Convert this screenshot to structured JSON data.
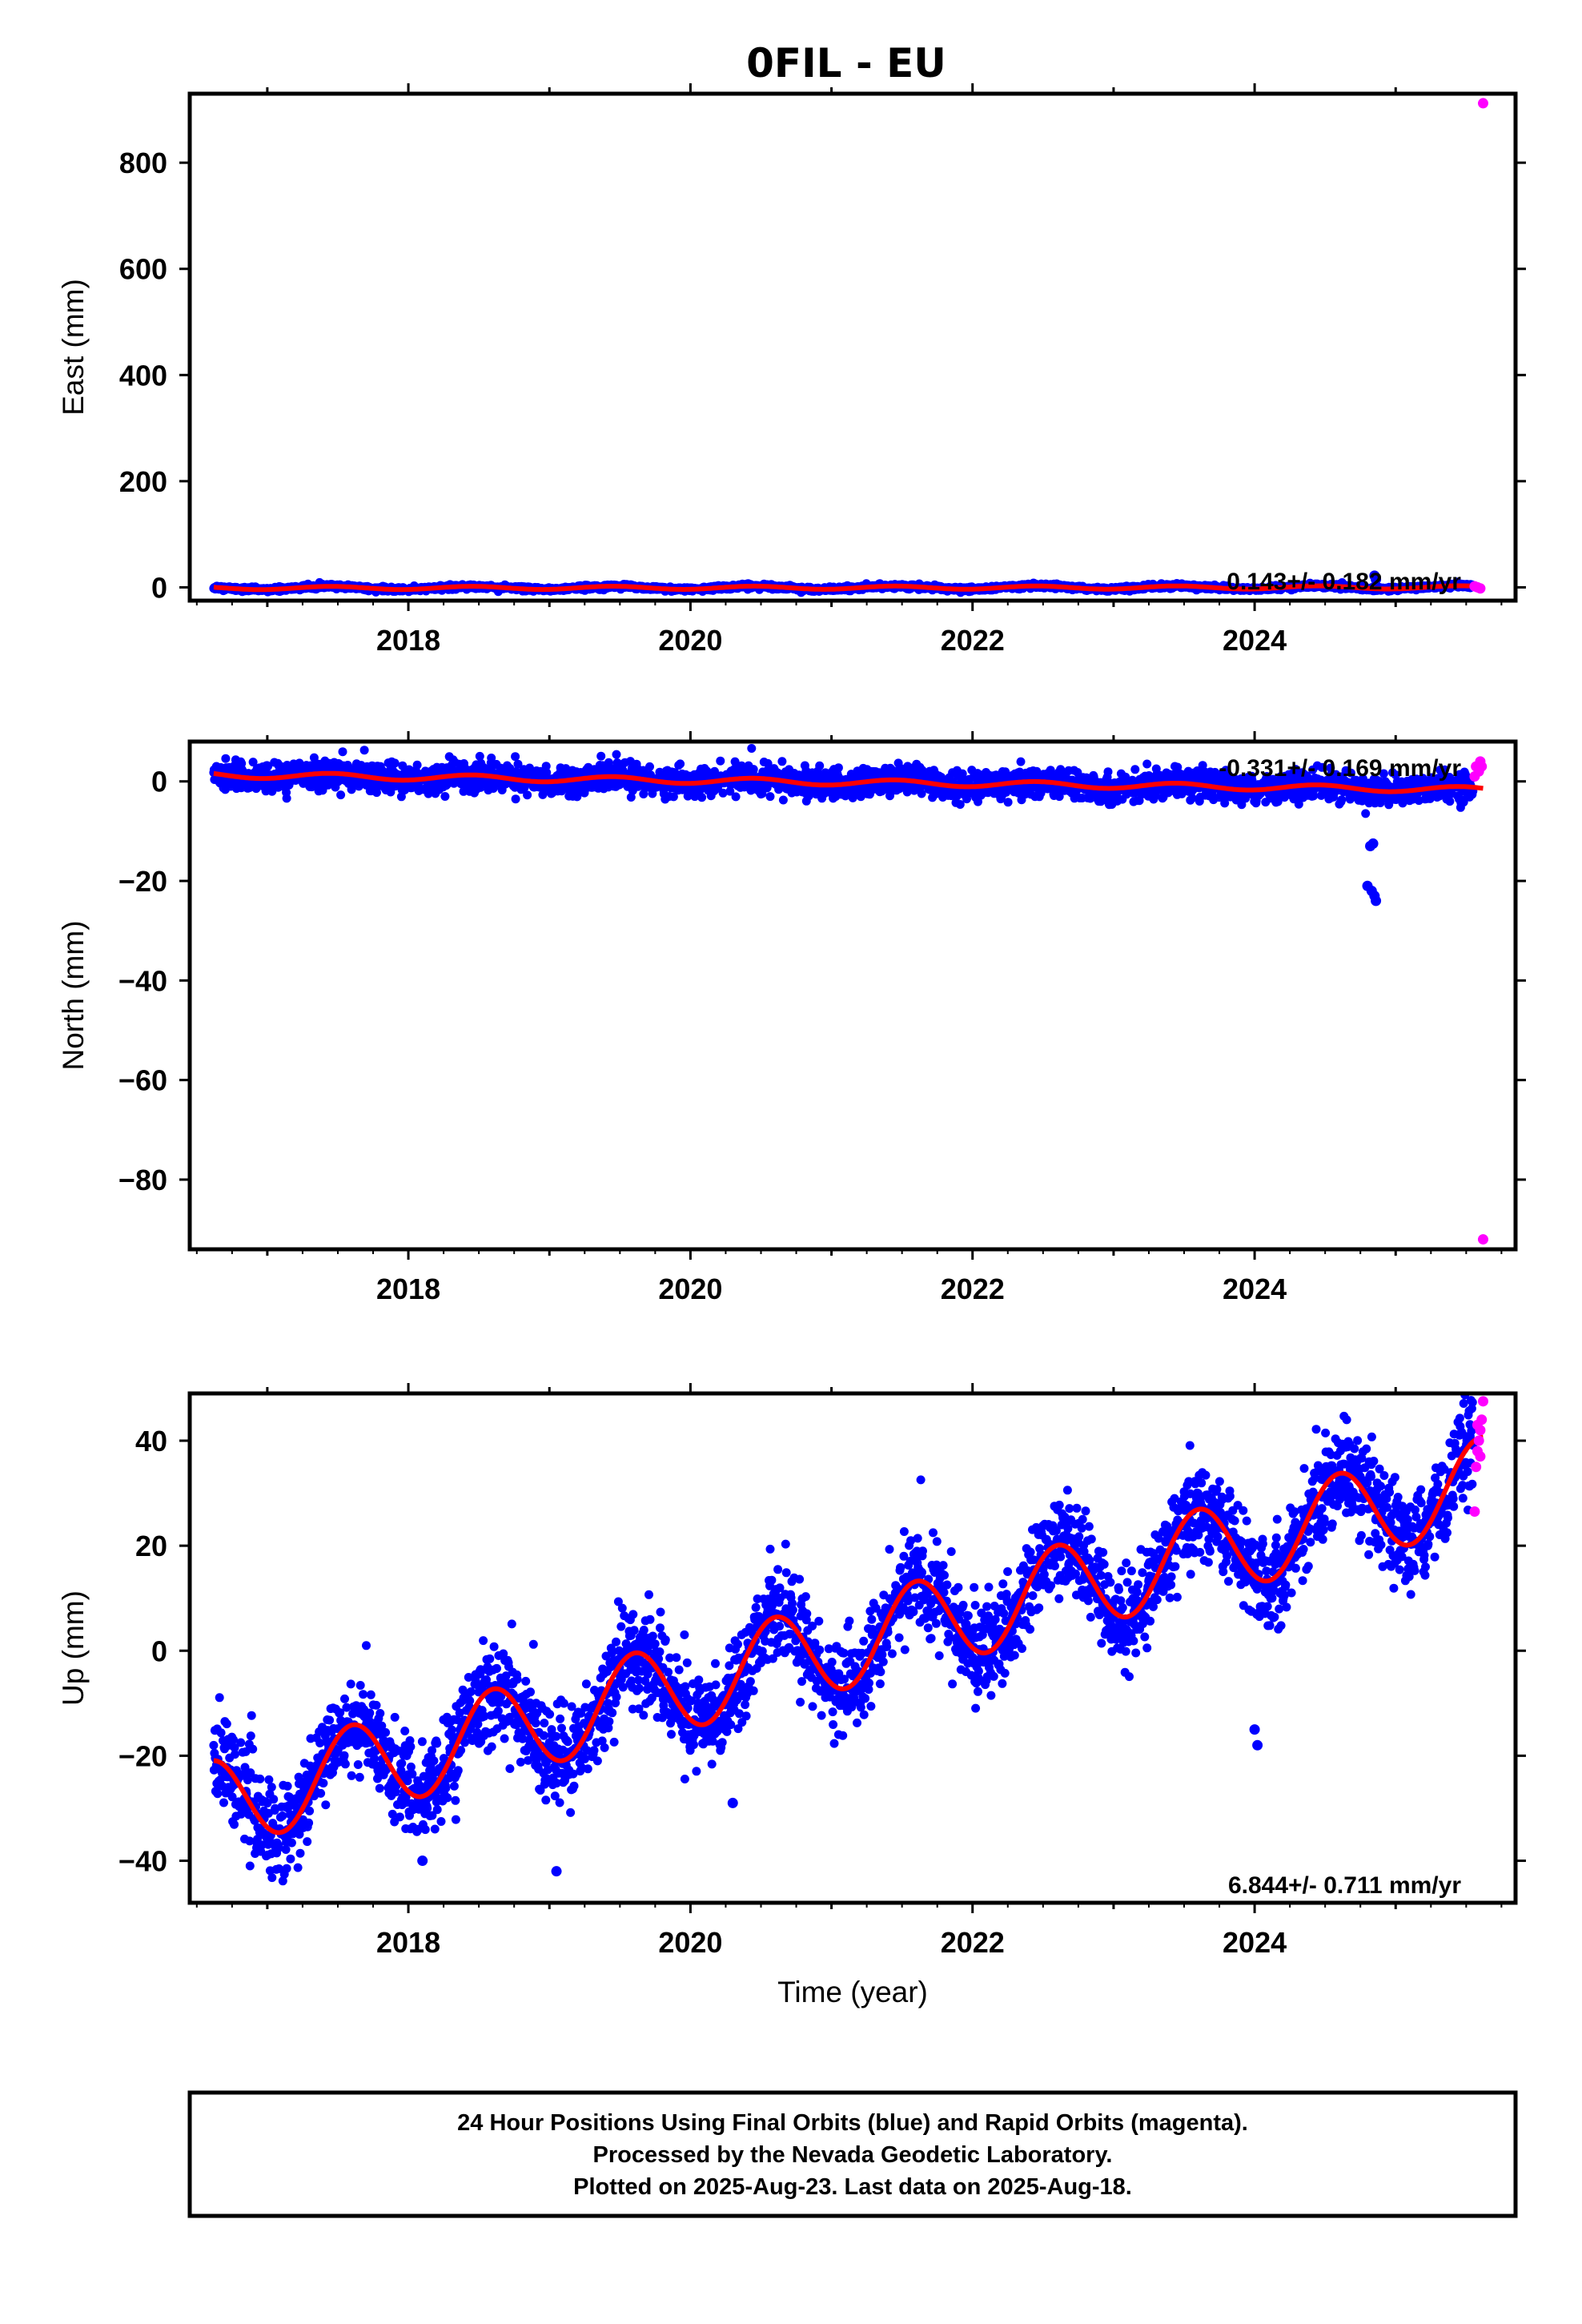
{
  "title": "0FIL - EU",
  "colors": {
    "final": "#0000ff",
    "rapid": "#ff00ff",
    "model": "#ff0000",
    "frame": "#000000"
  },
  "chart_data": [
    {
      "type": "scatter",
      "component": "east",
      "ylabel": "East (mm)",
      "xlabel": "",
      "xlim": [
        2016.45,
        2025.85
      ],
      "ylim": [
        -25,
        930
      ],
      "xticks": [
        2018,
        2020,
        2022,
        2024
      ],
      "yticks": [
        0,
        200,
        400,
        600,
        800
      ],
      "rate_text": "0.143+/- 0.182 mm/yr",
      "model": {
        "offset": -1.3,
        "rate": 0.143,
        "amplitude": 3.0,
        "phase_year": 2017.45
      },
      "final_orbits": {
        "scatter_mm": 2.0,
        "outliers": [
          [
            2024.85,
            22
          ],
          [
            2024.86,
            15
          ]
        ]
      },
      "rapid_orbits": {
        "points": [
          [
            2025.56,
            2
          ],
          [
            2025.58,
            0
          ],
          [
            2025.6,
            -2
          ],
          [
            2025.62,
            912
          ]
        ]
      }
    },
    {
      "type": "scatter",
      "component": "north",
      "ylabel": "North (mm)",
      "xlabel": "",
      "xlim": [
        2016.45,
        2025.85
      ],
      "ylim": [
        -94,
        8
      ],
      "xticks": [
        2018,
        2020,
        2022,
        2024
      ],
      "yticks": [
        0,
        -20,
        -40,
        -60,
        -80
      ],
      "rate_text": "-0.331+/- 0.169 mm/yr",
      "model": {
        "offset": 1.3,
        "rate": -0.331,
        "amplitude": 0.6,
        "phase_year": 2017.45
      },
      "final_orbits": {
        "scatter_mm": 1.4,
        "outliers": [
          [
            2024.82,
            -13
          ],
          [
            2024.84,
            -12.5
          ],
          [
            2024.8,
            -21
          ],
          [
            2024.83,
            -22
          ],
          [
            2024.85,
            -23
          ],
          [
            2024.86,
            -24
          ]
        ]
      },
      "rapid_orbits": {
        "points": [
          [
            2025.56,
            1
          ],
          [
            2025.57,
            3
          ],
          [
            2025.59,
            2
          ],
          [
            2025.6,
            4
          ],
          [
            2025.61,
            3
          ],
          [
            2025.62,
            -92
          ]
        ]
      }
    },
    {
      "type": "scatter",
      "component": "up",
      "ylabel": "Up (mm)",
      "xlabel": "Time (year)",
      "xlim": [
        2016.45,
        2025.85
      ],
      "ylim": [
        -48,
        49
      ],
      "xticks": [
        2018,
        2020,
        2022,
        2024
      ],
      "yticks": [
        40,
        20,
        0,
        -20,
        -40
      ],
      "rate_text": "6.844+/- 0.711 mm/yr",
      "model": {
        "offset": -29.5,
        "rate": 6.844,
        "amplitude": 8.5,
        "phase_year": 2017.6
      },
      "final_orbits": {
        "scatter_mm": 4.5,
        "outliers": [
          [
            2024.0,
            -15
          ],
          [
            2024.02,
            -18
          ],
          [
            2019.05,
            -42
          ],
          [
            2018.1,
            -40
          ],
          [
            2020.3,
            -29
          ]
        ]
      },
      "rapid_orbits": {
        "points": [
          [
            2025.56,
            26.5
          ],
          [
            2025.57,
            35
          ],
          [
            2025.58,
            38
          ],
          [
            2025.59,
            40
          ],
          [
            2025.6,
            42
          ],
          [
            2025.61,
            44
          ],
          [
            2025.62,
            47.5
          ],
          [
            2025.6,
            37
          ],
          [
            2025.58,
            43
          ]
        ]
      }
    }
  ],
  "footer": {
    "line1": "24 Hour Positions Using Final Orbits (blue) and Rapid Orbits (magenta).",
    "line2": "Processed by the Nevada Geodetic Laboratory.",
    "line3": "Plotted on 2025-Aug-23. Last data on 2025-Aug-18."
  }
}
